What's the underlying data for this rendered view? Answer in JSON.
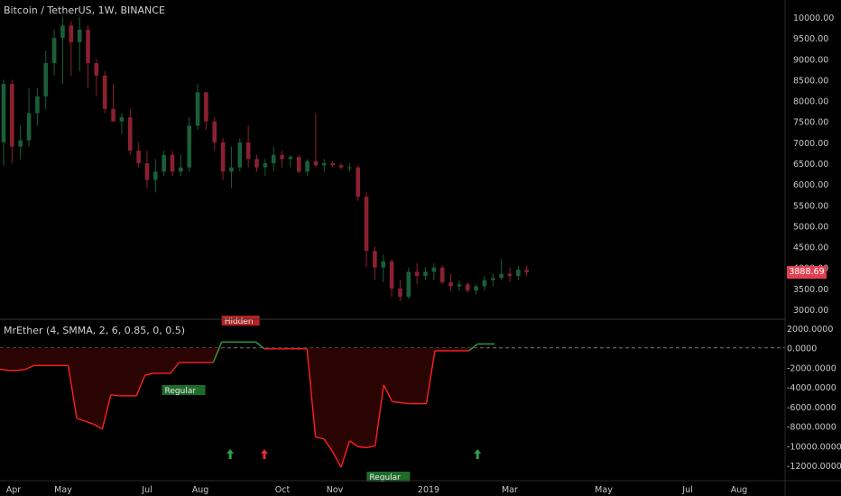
{
  "header": {
    "symbol_title": "Bitcoin / TetherUS, 1W, BINANCE",
    "indicator_title": "MrEther (4, SMMA, 2, 6, 0.85, 0, 0.5)"
  },
  "last_price_label": "3888.69",
  "colors": {
    "background": "#000000",
    "candle_up": "#1b5e3a",
    "candle_down": "#8b2030",
    "line_negative": "#ff2020",
    "line_positive": "#2ea043",
    "fill_negative": "#2a0303",
    "price_tag": "#e04050",
    "grid_text": "#c8c8c8"
  },
  "chart_data": [
    {
      "type": "candlestick",
      "title": "Bitcoin / TetherUS, 1W, BINANCE",
      "ylim": [
        2800,
        10300
      ],
      "y_ticks": [
        3000,
        3500,
        4000,
        4500,
        5000,
        5500,
        6000,
        6500,
        7000,
        7500,
        8000,
        8500,
        9000,
        9500,
        10000
      ],
      "y_tick_labels": [
        "3000.00",
        "3500.00",
        "4000.00",
        "4500.00",
        "5000.00",
        "5500.00",
        "6000.00",
        "6500.00",
        "7000.00",
        "7500.00",
        "8000.00",
        "8500.00",
        "9000.00",
        "9500.00",
        "10000.00"
      ],
      "x_tick_labels": [
        "Apr",
        "May",
        "Jul",
        "Aug",
        "Oct",
        "Nov",
        "2019",
        "Mar",
        "May",
        "Jul",
        "Aug"
      ],
      "last_price": 3888.69,
      "candles": [
        {
          "o": 7000,
          "h": 8500,
          "l": 6450,
          "c": 8400
        },
        {
          "o": 8400,
          "h": 8500,
          "l": 6500,
          "c": 6900
        },
        {
          "o": 6900,
          "h": 7400,
          "l": 6600,
          "c": 7050
        },
        {
          "o": 7050,
          "h": 8300,
          "l": 6900,
          "c": 7700
        },
        {
          "o": 7700,
          "h": 8300,
          "l": 7400,
          "c": 8100
        },
        {
          "o": 8100,
          "h": 9200,
          "l": 7800,
          "c": 8900
        },
        {
          "o": 8900,
          "h": 9700,
          "l": 8600,
          "c": 9500
        },
        {
          "o": 9500,
          "h": 10000,
          "l": 8400,
          "c": 9800
        },
        {
          "o": 9800,
          "h": 9900,
          "l": 8600,
          "c": 9400
        },
        {
          "o": 9400,
          "h": 10000,
          "l": 8700,
          "c": 9700
        },
        {
          "o": 9700,
          "h": 9800,
          "l": 8300,
          "c": 8900
        },
        {
          "o": 8900,
          "h": 9000,
          "l": 8100,
          "c": 8600
        },
        {
          "o": 8600,
          "h": 8700,
          "l": 7700,
          "c": 7800
        },
        {
          "o": 7800,
          "h": 8400,
          "l": 7500,
          "c": 7500
        },
        {
          "o": 7500,
          "h": 7700,
          "l": 7200,
          "c": 7600
        },
        {
          "o": 7600,
          "h": 7800,
          "l": 6700,
          "c": 6800
        },
        {
          "o": 6800,
          "h": 7000,
          "l": 6400,
          "c": 6500
        },
        {
          "o": 6500,
          "h": 6800,
          "l": 5900,
          "c": 6100
        },
        {
          "o": 6100,
          "h": 6600,
          "l": 5800,
          "c": 6300
        },
        {
          "o": 6300,
          "h": 6800,
          "l": 6200,
          "c": 6700
        },
        {
          "o": 6700,
          "h": 6800,
          "l": 6200,
          "c": 6300
        },
        {
          "o": 6300,
          "h": 6700,
          "l": 6200,
          "c": 6400
        },
        {
          "o": 6400,
          "h": 7600,
          "l": 6300,
          "c": 7400
        },
        {
          "o": 7400,
          "h": 8400,
          "l": 7300,
          "c": 8200
        },
        {
          "o": 8200,
          "h": 8200,
          "l": 7300,
          "c": 7500
        },
        {
          "o": 7500,
          "h": 7600,
          "l": 6800,
          "c": 7000
        },
        {
          "o": 7000,
          "h": 7100,
          "l": 6100,
          "c": 6300
        },
        {
          "o": 6300,
          "h": 6900,
          "l": 5900,
          "c": 6400
        },
        {
          "o": 6400,
          "h": 7100,
          "l": 6300,
          "c": 7000
        },
        {
          "o": 7000,
          "h": 7400,
          "l": 6400,
          "c": 6600
        },
        {
          "o": 6600,
          "h": 6700,
          "l": 6300,
          "c": 6400
        },
        {
          "o": 6400,
          "h": 6600,
          "l": 6200,
          "c": 6500
        },
        {
          "o": 6500,
          "h": 6900,
          "l": 6300,
          "c": 6700
        },
        {
          "o": 6700,
          "h": 6800,
          "l": 6400,
          "c": 6600
        },
        {
          "o": 6600,
          "h": 6700,
          "l": 6400,
          "c": 6650
        },
        {
          "o": 6650,
          "h": 6700,
          "l": 6250,
          "c": 6300
        },
        {
          "o": 6300,
          "h": 6600,
          "l": 6200,
          "c": 6550
        },
        {
          "o": 6550,
          "h": 7700,
          "l": 6400,
          "c": 6450
        },
        {
          "o": 6450,
          "h": 6600,
          "l": 6300,
          "c": 6500
        },
        {
          "o": 6500,
          "h": 6550,
          "l": 6400,
          "c": 6450
        },
        {
          "o": 6450,
          "h": 6500,
          "l": 6350,
          "c": 6400
        },
        {
          "o": 6400,
          "h": 6500,
          "l": 6300,
          "c": 6400
        },
        {
          "o": 6400,
          "h": 6450,
          "l": 5600,
          "c": 5700
        },
        {
          "o": 5700,
          "h": 5800,
          "l": 4000,
          "c": 4400
        },
        {
          "o": 4400,
          "h": 4500,
          "l": 3700,
          "c": 4000
        },
        {
          "o": 4000,
          "h": 4300,
          "l": 3650,
          "c": 4150
        },
        {
          "o": 4150,
          "h": 4200,
          "l": 3300,
          "c": 3500
        },
        {
          "o": 3500,
          "h": 3700,
          "l": 3200,
          "c": 3300
        },
        {
          "o": 3300,
          "h": 4000,
          "l": 3250,
          "c": 3900
        },
        {
          "o": 3900,
          "h": 4100,
          "l": 3600,
          "c": 3800
        },
        {
          "o": 3800,
          "h": 4000,
          "l": 3700,
          "c": 3900
        },
        {
          "o": 3900,
          "h": 4100,
          "l": 3700,
          "c": 4000
        },
        {
          "o": 4000,
          "h": 4050,
          "l": 3600,
          "c": 3650
        },
        {
          "o": 3650,
          "h": 3850,
          "l": 3450,
          "c": 3550
        },
        {
          "o": 3550,
          "h": 3700,
          "l": 3450,
          "c": 3600
        },
        {
          "o": 3600,
          "h": 3650,
          "l": 3400,
          "c": 3450
        },
        {
          "o": 3450,
          "h": 3600,
          "l": 3350,
          "c": 3550
        },
        {
          "o": 3550,
          "h": 3800,
          "l": 3450,
          "c": 3700
        },
        {
          "o": 3700,
          "h": 3850,
          "l": 3550,
          "c": 3750
        },
        {
          "o": 3750,
          "h": 4200,
          "l": 3700,
          "c": 3850
        },
        {
          "o": 3850,
          "h": 4000,
          "l": 3650,
          "c": 3800
        },
        {
          "o": 3800,
          "h": 4050,
          "l": 3700,
          "c": 3950
        },
        {
          "o": 3950,
          "h": 4050,
          "l": 3800,
          "c": 3888.69
        }
      ]
    },
    {
      "type": "area",
      "title": "MrEther (4, SMMA, 2, 6, 0.85, 0, 0.5)",
      "ylim": [
        -13000,
        3000
      ],
      "y_ticks": [
        2000,
        0,
        -2000,
        -4000,
        -6000,
        -8000,
        -10000,
        -12000
      ],
      "y_tick_labels": [
        "2000.0000",
        "0.0000",
        "-2000.0000",
        "-4000.0000",
        "-6000.0000",
        "-8000.0000",
        "-10000.0000",
        "-12000.0000"
      ],
      "zero_line": "dashed",
      "values": [
        -2200,
        -2300,
        -2300,
        -2200,
        -1800,
        -1800,
        -1800,
        -1800,
        -1800,
        -7200,
        -7500,
        -7800,
        -8300,
        -4800,
        -4900,
        -4900,
        -4900,
        -2800,
        -2600,
        -2600,
        -2600,
        -1500,
        -1500,
        -1500,
        -1500,
        -1500,
        600,
        600,
        600,
        600,
        600,
        -100,
        -100,
        -100,
        -100,
        -100,
        -100,
        -9100,
        -9300,
        -10600,
        -12200,
        -9500,
        -10100,
        -10200,
        -10000,
        -3800,
        -5500,
        -5600,
        -5700,
        -5700,
        -5700,
        -300,
        -300,
        -300,
        -300,
        -300,
        400,
        400,
        400
      ],
      "annotations": [
        {
          "label": "Hidden",
          "index": 26,
          "color": "#e03030"
        },
        {
          "label": "Regular",
          "index": 19,
          "color": "#2ea043"
        },
        {
          "label": "Regular",
          "index": 43,
          "color": "#2ea043"
        }
      ],
      "arrows": [
        {
          "index": 27,
          "direction": "up",
          "color": "#2ea043"
        },
        {
          "index": 31,
          "direction": "up",
          "color": "#e03030"
        },
        {
          "index": 56,
          "direction": "up",
          "color": "#2ea043"
        }
      ]
    }
  ]
}
